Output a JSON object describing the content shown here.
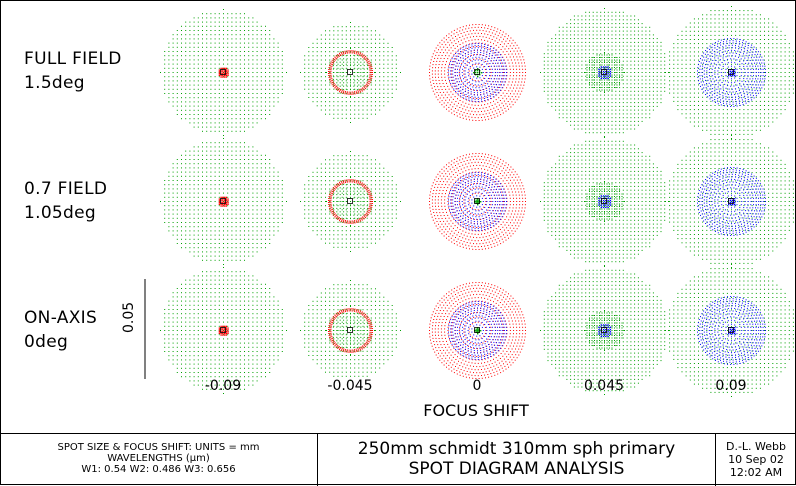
{
  "rows": [
    {
      "line1": "FULL FIELD",
      "line2": "1.5deg"
    },
    {
      "line1": "0.7 FIELD",
      "line2": "1.05deg"
    },
    {
      "line1": "ON-AXIS",
      "line2": "0deg"
    }
  ],
  "focus_shifts": [
    "-0.09",
    "-0.045",
    "0",
    "0.045",
    "0.09"
  ],
  "x_axis_label": "FOCUS SHIFT",
  "scale_bar_label": "0.05",
  "wavelength_colors": {
    "W1": "#00a000",
    "W2": "#0000ff",
    "W3": "#ff0000"
  },
  "footer": {
    "units_line": "SPOT SIZE & FOCUS SHIFT: UNITS = mm",
    "wavelengths_line": "WAVELENGTHS (µm)",
    "wavelength_values_line": "W1: 0.54 W2: 0.486 W3: 0.656",
    "title_line1": "250mm schmidt 310mm sph primary",
    "title_line2": "SPOT DIAGRAM ANALYSIS",
    "author": "D.-L. Webb",
    "date": "10 Sep 02",
    "time": "12:02 AM"
  }
}
